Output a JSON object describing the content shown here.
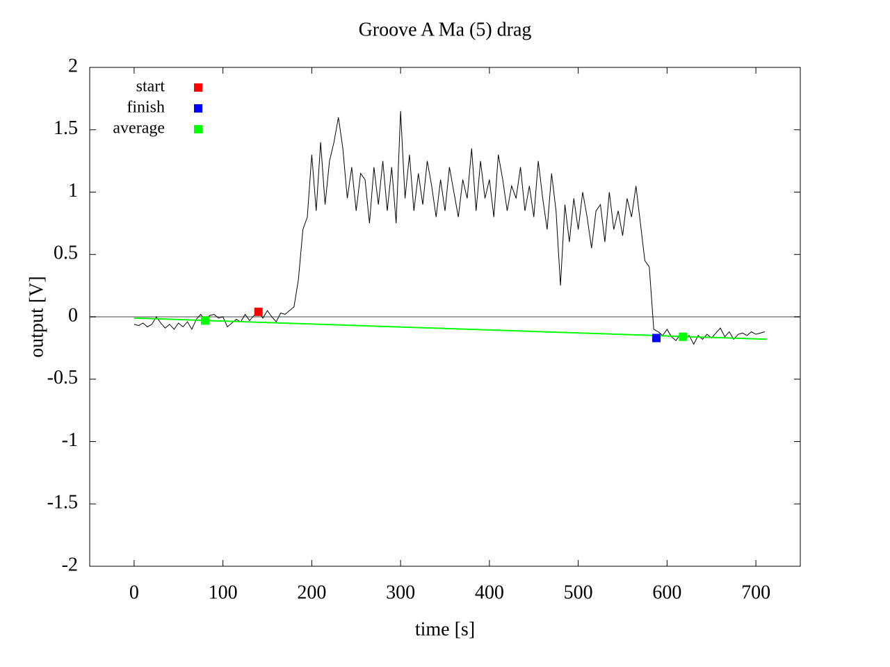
{
  "chart_data": {
    "type": "line",
    "title": "Groove A  Ma (5) drag",
    "xlabel": "time [s]",
    "ylabel": "output [V]",
    "xlim": [
      -50,
      750
    ],
    "ylim": [
      -2,
      2
    ],
    "xticks": [
      0,
      100,
      200,
      300,
      400,
      500,
      600,
      700
    ],
    "yticks": [
      -2,
      -1.5,
      -1,
      -0.5,
      0,
      0.5,
      1,
      1.5,
      2
    ],
    "zeroaxis": true,
    "zeroaxis_color": "#a0a0a0",
    "legend": "top left",
    "series": [
      {
        "style": "lines",
        "color": "#000000",
        "x": [
          0,
          5,
          10,
          15,
          20,
          25,
          30,
          35,
          40,
          45,
          50,
          55,
          60,
          65,
          70,
          75,
          80,
          85,
          90,
          95,
          100,
          105,
          110,
          115,
          120,
          125,
          130,
          135,
          140,
          145,
          150,
          155,
          160,
          165,
          170,
          175,
          180,
          185,
          190,
          195,
          200,
          205,
          210,
          215,
          220,
          225,
          230,
          235,
          240,
          245,
          250,
          255,
          260,
          265,
          270,
          275,
          280,
          285,
          290,
          295,
          300,
          305,
          310,
          315,
          320,
          325,
          330,
          335,
          340,
          345,
          350,
          355,
          360,
          365,
          370,
          375,
          380,
          385,
          390,
          395,
          400,
          405,
          410,
          415,
          420,
          425,
          430,
          435,
          440,
          445,
          450,
          455,
          460,
          465,
          470,
          475,
          480,
          485,
          490,
          495,
          500,
          505,
          510,
          515,
          520,
          525,
          530,
          535,
          540,
          545,
          550,
          555,
          560,
          565,
          570,
          575,
          580,
          585,
          590,
          595,
          600,
          605,
          610,
          615,
          620,
          625,
          630,
          635,
          640,
          645,
          650,
          655,
          660,
          665,
          670,
          675,
          680,
          685,
          690,
          695,
          700,
          705,
          710
        ],
        "values": [
          -0.06,
          -0.07,
          -0.05,
          -0.08,
          -0.06,
          0.0,
          -0.05,
          -0.09,
          -0.06,
          -0.1,
          -0.05,
          -0.08,
          -0.04,
          -0.1,
          -0.02,
          0.02,
          -0.03,
          0.01,
          0.02,
          -0.01,
          0.0,
          -0.08,
          -0.05,
          -0.02,
          -0.04,
          0.02,
          -0.03,
          0.01,
          0.04,
          -0.01,
          0.05,
          0.0,
          -0.04,
          0.03,
          0.02,
          0.05,
          0.08,
          0.3,
          0.7,
          0.8,
          1.3,
          0.85,
          1.4,
          0.9,
          1.25,
          1.4,
          1.6,
          1.35,
          0.95,
          1.2,
          0.85,
          1.15,
          1.1,
          0.75,
          1.2,
          0.9,
          1.25,
          0.85,
          1.2,
          0.75,
          1.65,
          0.95,
          1.3,
          0.85,
          1.15,
          0.9,
          1.25,
          1.05,
          0.8,
          1.1,
          0.85,
          1.2,
          1.0,
          0.8,
          1.1,
          0.95,
          1.35,
          0.85,
          1.25,
          0.95,
          1.1,
          0.8,
          1.3,
          1.1,
          0.85,
          1.05,
          0.95,
          1.2,
          0.85,
          1.05,
          0.8,
          1.25,
          0.95,
          0.7,
          1.15,
          0.85,
          0.25,
          0.9,
          0.6,
          0.95,
          0.7,
          1.0,
          0.8,
          0.55,
          0.85,
          0.9,
          0.6,
          1.0,
          0.7,
          0.85,
          0.65,
          0.95,
          0.8,
          1.05,
          0.75,
          0.45,
          0.4,
          -0.1,
          -0.12,
          -0.15,
          -0.1,
          -0.16,
          -0.19,
          -0.14,
          -0.17,
          -0.15,
          -0.22,
          -0.15,
          -0.18,
          -0.14,
          -0.17,
          -0.13,
          -0.09,
          -0.16,
          -0.12,
          -0.18,
          -0.14,
          -0.13,
          -0.15,
          -0.12,
          -0.14,
          -0.13,
          -0.12
        ]
      },
      {
        "style": "lines",
        "color": "#00ff00",
        "x": [
          0,
          712
        ],
        "values": [
          -0.01,
          -0.18
        ]
      },
      {
        "style": "points",
        "name": "start",
        "color": "#ff0000",
        "x": [
          140
        ],
        "values": [
          0.04
        ]
      },
      {
        "style": "points",
        "name": "finish",
        "color": "#0000ff",
        "x": [
          588
        ],
        "values": [
          -0.17
        ]
      },
      {
        "style": "points",
        "name": "average",
        "color": "#00ff00",
        "x": [
          80,
          618
        ],
        "values": [
          -0.03,
          -0.16
        ]
      }
    ]
  }
}
